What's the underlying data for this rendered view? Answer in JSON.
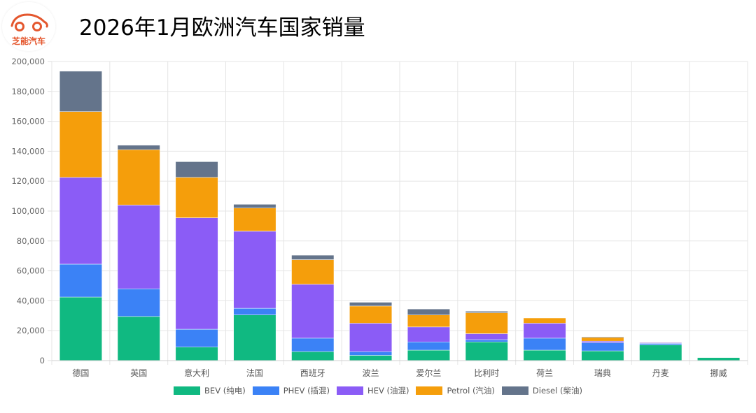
{
  "header": {
    "logo_text": "芝能汽车",
    "title": "2026年1月欧洲汽车国家销量"
  },
  "chart_data": {
    "type": "bar",
    "stacked": true,
    "title": "2026年1月欧洲汽车国家销量",
    "categories": [
      "德国",
      "英国",
      "意大利",
      "法国",
      "西班牙",
      "波兰",
      "爱尔兰",
      "比利时",
      "荷兰",
      "瑞典",
      "丹麦",
      "挪威"
    ],
    "ylim": [
      0,
      200000
    ],
    "yticks": [
      0,
      20000,
      40000,
      60000,
      80000,
      100000,
      120000,
      140000,
      160000,
      180000,
      200000
    ],
    "ytick_labels": [
      "0",
      "20,000",
      "40,000",
      "60,000",
      "80,000",
      "100,000",
      "120,000",
      "140,000",
      "160,000",
      "180,000",
      "200,000"
    ],
    "grid": true,
    "legend_position": "bottom",
    "series": [
      {
        "name": "BEV (纯电)",
        "color": "#10b981",
        "values": [
          42500,
          29500,
          9000,
          30500,
          6000,
          3500,
          7000,
          12500,
          7000,
          6500,
          10500,
          2000
        ]
      },
      {
        "name": "PHEV (插混)",
        "color": "#3b82f6",
        "values": [
          22000,
          18500,
          12000,
          4500,
          9000,
          2500,
          5500,
          1500,
          8000,
          5500,
          1000,
          0
        ]
      },
      {
        "name": "HEV (油混)",
        "color": "#8b5cf6",
        "values": [
          58000,
          56000,
          74500,
          51500,
          36000,
          19000,
          10000,
          4000,
          10000,
          1000,
          500,
          0
        ]
      },
      {
        "name": "Petrol (汽油)",
        "color": "#f59e0b",
        "values": [
          44000,
          37000,
          27000,
          15500,
          16500,
          11500,
          8000,
          14000,
          3500,
          2500,
          300,
          0
        ]
      },
      {
        "name": "Diesel (柴油)",
        "color": "#64748b",
        "values": [
          27000,
          3000,
          10500,
          2500,
          3000,
          2500,
          4000,
          1000,
          0,
          500,
          0,
          0
        ]
      }
    ]
  }
}
